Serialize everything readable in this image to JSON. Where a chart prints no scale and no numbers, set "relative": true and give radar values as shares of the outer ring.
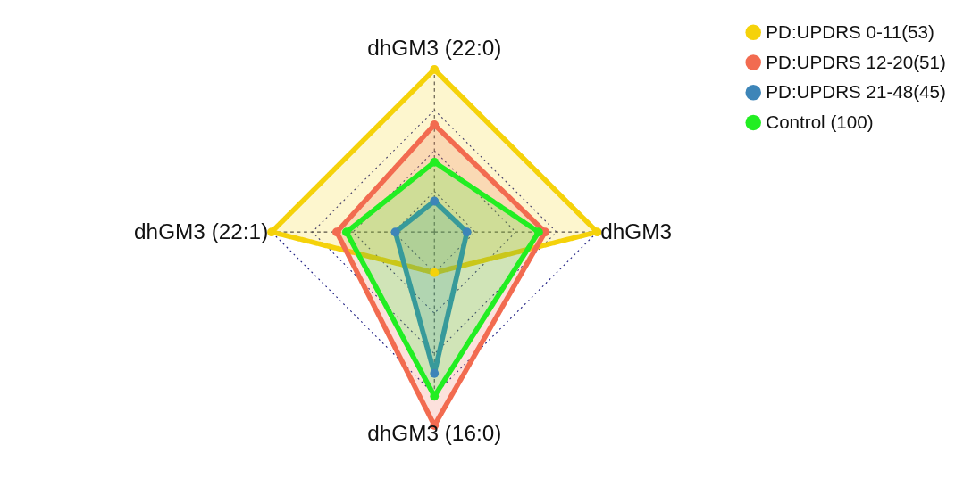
{
  "chart_data": {
    "type": "radar",
    "relative": true,
    "grid": true,
    "legend": "right",
    "marker": "circle",
    "line_style": "solid",
    "categories": [
      "dhGM3 (22:0)",
      "dhGM3",
      "dhGM3 (16:0)",
      "dhGM3 (22:1)"
    ],
    "series": [
      {
        "name": "PD:UPDRS 0-11(53)",
        "color": "#f5d20a",
        "values": [
          1.0,
          1.0,
          0.25,
          1.0
        ]
      },
      {
        "name": "PD:UPDRS 12-20(51)",
        "color": "#f26b50",
        "values": [
          0.66,
          0.68,
          1.19,
          0.6
        ]
      },
      {
        "name": "PD:UPDRS 21-48(45)",
        "color": "#3d85b8",
        "values": [
          0.19,
          0.2,
          0.87,
          0.24
        ]
      },
      {
        "name": "Control (100)",
        "color": "#22ee22",
        "values": [
          0.43,
          0.64,
          1.01,
          0.54
        ]
      }
    ]
  }
}
